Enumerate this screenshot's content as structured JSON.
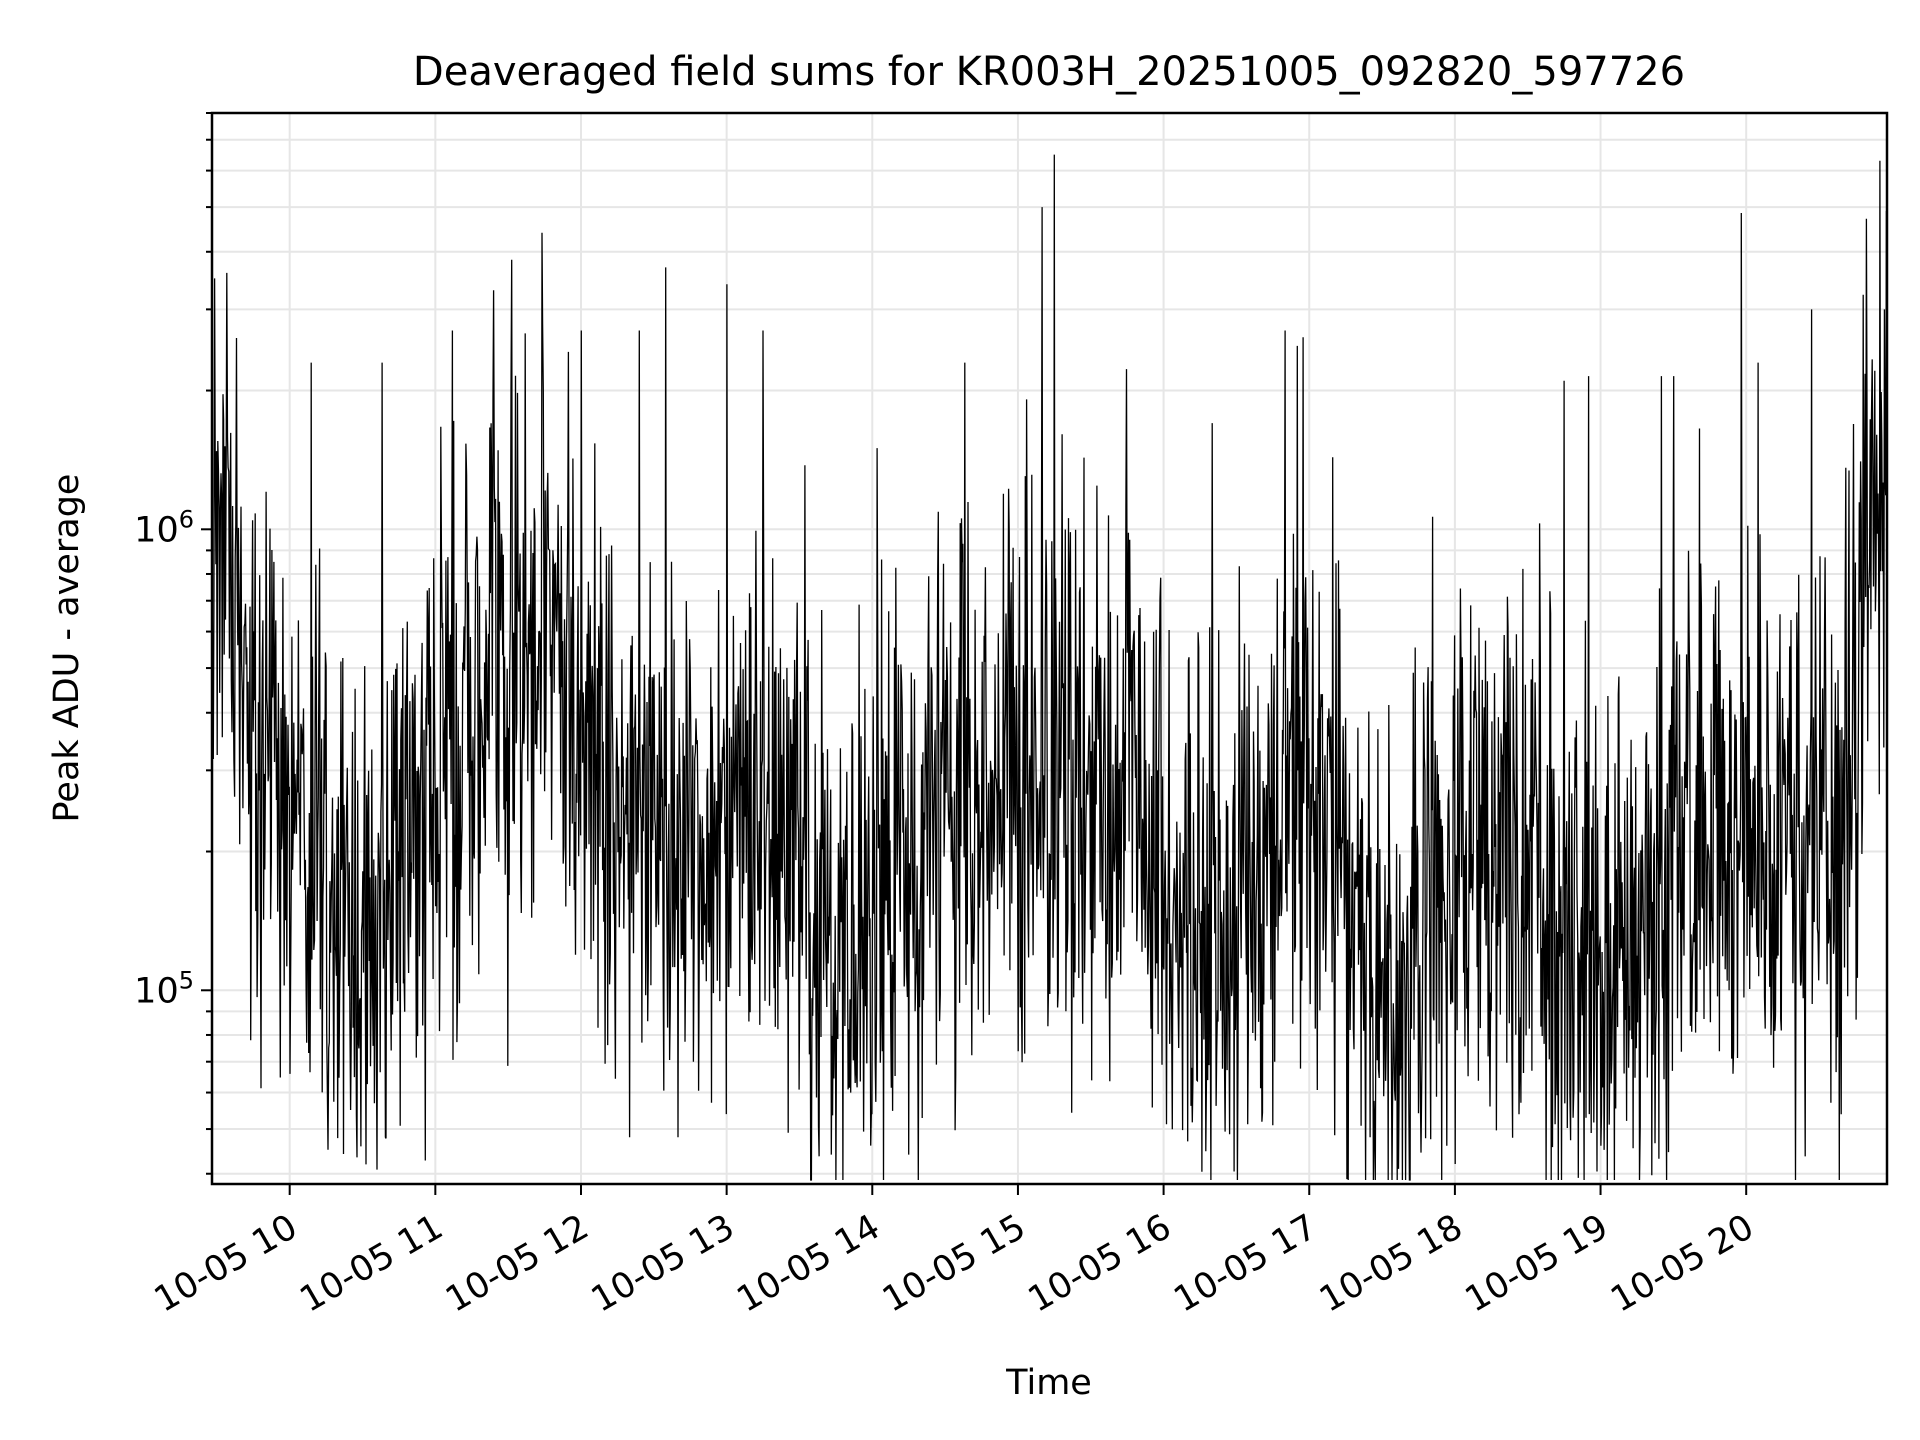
{
  "chart_data": {
    "type": "line",
    "title": "Deaveraged field sums for KR003H_20251005_092820_597726",
    "xlabel": "Time",
    "ylabel": "Peak ADU - average",
    "y_scale": "log",
    "ylim": [
      38000,
      8000000
    ],
    "xlim": [
      "2025-10-05 09:28",
      "2025-10-05 20:58"
    ],
    "x_ticks": [
      {
        "t": "2025-10-05 10:00",
        "label": "10-05 10"
      },
      {
        "t": "2025-10-05 11:00",
        "label": "10-05 11"
      },
      {
        "t": "2025-10-05 12:00",
        "label": "10-05 12"
      },
      {
        "t": "2025-10-05 13:00",
        "label": "10-05 13"
      },
      {
        "t": "2025-10-05 14:00",
        "label": "10-05 14"
      },
      {
        "t": "2025-10-05 15:00",
        "label": "10-05 15"
      },
      {
        "t": "2025-10-05 16:00",
        "label": "10-05 16"
      },
      {
        "t": "2025-10-05 17:00",
        "label": "10-05 17"
      },
      {
        "t": "2025-10-05 18:00",
        "label": "10-05 18"
      },
      {
        "t": "2025-10-05 19:00",
        "label": "10-05 19"
      },
      {
        "t": "2025-10-05 20:00",
        "label": "10-05 20"
      }
    ],
    "y_ticks": [
      {
        "v": 100000,
        "base": "10",
        "exp": "5"
      },
      {
        "v": 1000000,
        "base": "10",
        "exp": "6"
      }
    ],
    "grid": true,
    "series": [
      {
        "color": "#000000",
        "baseline": [
          [
            "2025-10-05 09:28",
            600000
          ],
          [
            "2025-10-05 09:35",
            900000
          ],
          [
            "2025-10-05 09:45",
            300000
          ],
          [
            "2025-10-05 10:05",
            280000
          ],
          [
            "2025-10-05 10:15",
            160000
          ],
          [
            "2025-10-05 10:30",
            150000
          ],
          [
            "2025-10-05 10:45",
            210000
          ],
          [
            "2025-10-05 11:00",
            300000
          ],
          [
            "2025-10-05 11:15",
            420000
          ],
          [
            "2025-10-05 11:30",
            600000
          ],
          [
            "2025-10-05 11:45",
            650000
          ],
          [
            "2025-10-05 12:00",
            360000
          ],
          [
            "2025-10-05 12:20",
            230000
          ],
          [
            "2025-10-05 12:45",
            200000
          ],
          [
            "2025-10-05 13:15",
            250000
          ],
          [
            "2025-10-05 13:45",
            120000
          ],
          [
            "2025-10-05 14:10",
            180000
          ],
          [
            "2025-10-05 14:40",
            240000
          ],
          [
            "2025-10-05 15:10",
            300000
          ],
          [
            "2025-10-05 15:40",
            280000
          ],
          [
            "2025-10-05 16:05",
            170000
          ],
          [
            "2025-10-05 16:25",
            130000
          ],
          [
            "2025-10-05 16:45",
            250000
          ],
          [
            "2025-10-05 17:10",
            250000
          ],
          [
            "2025-10-05 17:30",
            100000
          ],
          [
            "2025-10-05 18:00",
            170000
          ],
          [
            "2025-10-05 18:30",
            200000
          ],
          [
            "2025-10-05 18:50",
            110000
          ],
          [
            "2025-10-05 19:15",
            130000
          ],
          [
            "2025-10-05 19:40",
            280000
          ],
          [
            "2025-10-05 20:10",
            230000
          ],
          [
            "2025-10-05 20:40",
            200000
          ],
          [
            "2025-10-05 20:50",
            1000000
          ],
          [
            "2025-10-05 20:58",
            1800000
          ]
        ],
        "peaks": [
          [
            "2025-10-05 09:34",
            3600000
          ],
          [
            "2025-10-05 09:38",
            2600000
          ],
          [
            "2025-10-05 10:09",
            2300000
          ],
          [
            "2025-10-05 10:38",
            2300000
          ],
          [
            "2025-10-05 11:07",
            2700000
          ],
          [
            "2025-10-05 11:24",
            3300000
          ],
          [
            "2025-10-05 11:44",
            4400000
          ],
          [
            "2025-10-05 12:00",
            2700000
          ],
          [
            "2025-10-05 12:24",
            2700000
          ],
          [
            "2025-10-05 12:35",
            3700000
          ],
          [
            "2025-10-05 13:00",
            3400000
          ],
          [
            "2025-10-05 13:15",
            2700000
          ],
          [
            "2025-10-05 14:02",
            1500000
          ],
          [
            "2025-10-05 14:38",
            2300000
          ],
          [
            "2025-10-05 15:10",
            5000000
          ],
          [
            "2025-10-05 15:15",
            6500000
          ],
          [
            "2025-10-05 16:20",
            1700000
          ],
          [
            "2025-10-05 16:50",
            2700000
          ],
          [
            "2025-10-05 16:55",
            2500000
          ],
          [
            "2025-10-05 18:45",
            2100000
          ],
          [
            "2025-10-05 18:55",
            2150000
          ],
          [
            "2025-10-05 19:30",
            2150000
          ],
          [
            "2025-10-05 20:05",
            2300000
          ],
          [
            "2025-10-05 20:27",
            3000000
          ],
          [
            "2025-10-05 20:57",
            3000000
          ]
        ],
        "troughs": [
          [
            "2025-10-05 10:16",
            75000
          ],
          [
            "2025-10-05 10:25",
            55000
          ],
          [
            "2025-10-05 12:20",
            48000
          ],
          [
            "2025-10-05 12:40",
            48000
          ],
          [
            "2025-10-05 13:43",
            44000
          ],
          [
            "2025-10-05 14:15",
            44000
          ],
          [
            "2025-10-05 16:10",
            47000
          ],
          [
            "2025-10-05 17:25",
            48000
          ],
          [
            "2025-10-05 18:00",
            42000
          ],
          [
            "2025-10-05 19:00",
            46000
          ],
          [
            "2025-10-05 20:35",
            57000
          ]
        ]
      }
    ]
  }
}
